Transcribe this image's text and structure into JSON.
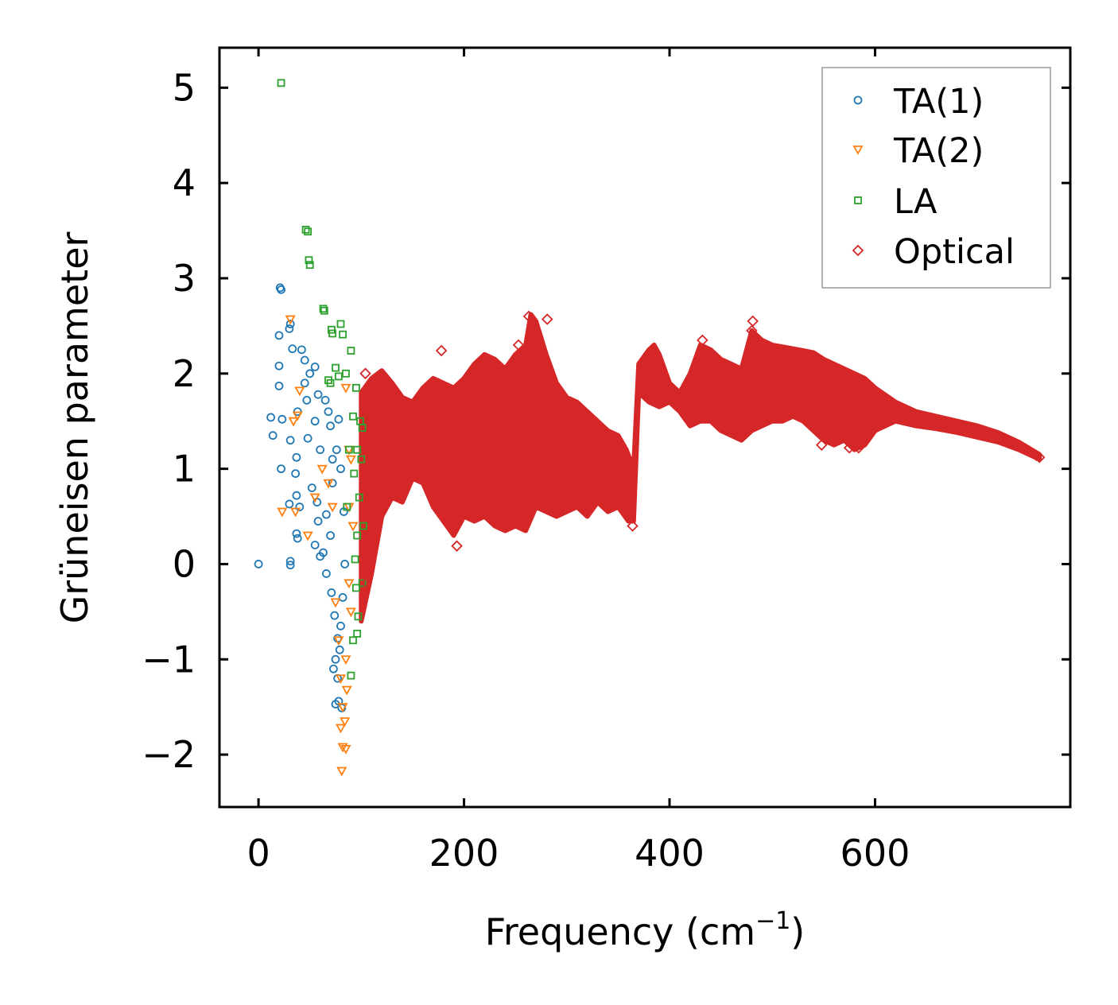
{
  "chart_data": {
    "type": "scatter",
    "xlabel_main": "Frequency (cm",
    "xlabel_sup": "−1",
    "xlabel_close": ")",
    "ylabel": "Grüneisen parameter",
    "xlim": [
      -38,
      790
    ],
    "ylim": [
      -2.55,
      5.42
    ],
    "xticks": [
      0,
      200,
      400,
      600
    ],
    "xtick_labels": [
      "0",
      "200",
      "400",
      "600"
    ],
    "yticks": [
      -2,
      -1,
      0,
      1,
      2,
      3,
      4,
      5
    ],
    "ytick_labels": [
      "−2",
      "−1",
      "0",
      "1",
      "2",
      "3",
      "4",
      "5"
    ],
    "legend_position": "top-right",
    "series": [
      {
        "name": "TA(1)",
        "marker": "circle",
        "color": "#1f77b4",
        "points": [
          [
            0,
            0
          ],
          [
            21,
            2.9
          ],
          [
            22,
            2.88
          ],
          [
            20,
            2.4
          ],
          [
            31,
            2.52
          ],
          [
            30,
            2.47
          ],
          [
            20,
            2.08
          ],
          [
            33,
            2.26
          ],
          [
            20,
            1.87
          ],
          [
            12,
            1.54
          ],
          [
            14,
            1.35
          ],
          [
            23,
            1.52
          ],
          [
            31,
            1.3
          ],
          [
            37,
            1.12
          ],
          [
            22,
            1.0
          ],
          [
            36,
            0.95
          ],
          [
            37,
            0.72
          ],
          [
            30,
            0.63
          ],
          [
            40,
            0.6
          ],
          [
            37,
            0.32
          ],
          [
            38,
            0.27
          ],
          [
            31,
            0.03
          ],
          [
            31,
            -0.01
          ],
          [
            42,
            2.25
          ],
          [
            45,
            2.14
          ],
          [
            50,
            2.0
          ],
          [
            55,
            2.07
          ],
          [
            45,
            1.9
          ],
          [
            58,
            1.78
          ],
          [
            47,
            1.72
          ],
          [
            38,
            1.6
          ],
          [
            55,
            1.5
          ],
          [
            48,
            1.32
          ],
          [
            60,
            1.2
          ],
          [
            52,
            0.8
          ],
          [
            57,
            0.65
          ],
          [
            58,
            0.45
          ],
          [
            55,
            0.2
          ],
          [
            60,
            0.08
          ],
          [
            65,
            1.72
          ],
          [
            68,
            1.6
          ],
          [
            70,
            1.45
          ],
          [
            72,
            1.1
          ],
          [
            66,
            0.52
          ],
          [
            70,
            0.3
          ],
          [
            63,
            0.12
          ],
          [
            66,
            -0.1
          ],
          [
            71,
            -0.3
          ],
          [
            74,
            -0.54
          ],
          [
            77,
            -0.78
          ],
          [
            75,
            -1.0
          ],
          [
            73,
            -1.1
          ],
          [
            77,
            -1.2
          ],
          [
            75,
            -1.47
          ],
          [
            78,
            -1.44
          ],
          [
            81,
            -1.51
          ],
          [
            79,
            -0.9
          ],
          [
            80,
            -0.65
          ],
          [
            82,
            -0.35
          ],
          [
            84,
            0.0
          ],
          [
            83,
            0.55
          ],
          [
            80,
            1.0
          ],
          [
            78,
            1.52
          ],
          [
            76,
            1.2
          ],
          [
            72,
            0.85
          ]
        ]
      },
      {
        "name": "TA(2)",
        "marker": "triangle-down",
        "color": "#ff7f0e",
        "points": [
          [
            31,
            2.57
          ],
          [
            40,
            1.82
          ],
          [
            34,
            1.5
          ],
          [
            38,
            1.56
          ],
          [
            23,
            0.55
          ],
          [
            36,
            0.55
          ],
          [
            48,
            0.3
          ],
          [
            55,
            0.7
          ],
          [
            62,
            1.0
          ],
          [
            68,
            0.85
          ],
          [
            72,
            0.6
          ],
          [
            75,
            -0.4
          ],
          [
            78,
            -0.8
          ],
          [
            80,
            -1.2
          ],
          [
            82,
            -1.5
          ],
          [
            80,
            -1.72
          ],
          [
            82,
            -1.92
          ],
          [
            85,
            -1.94
          ],
          [
            81,
            -2.17
          ],
          [
            84,
            -1.65
          ],
          [
            86,
            -1.32
          ],
          [
            85,
            -1.0
          ],
          [
            88,
            -0.2
          ],
          [
            88,
            0.6
          ],
          [
            88,
            1.2
          ],
          [
            85,
            1.85
          ],
          [
            90,
            1.1
          ],
          [
            92,
            0.4
          ],
          [
            90,
            -0.5
          ]
        ]
      },
      {
        "name": "LA",
        "marker": "square",
        "color": "#2ca02c",
        "points": [
          [
            22,
            5.05
          ],
          [
            46,
            3.51
          ],
          [
            48,
            3.49
          ],
          [
            49,
            3.19
          ],
          [
            50,
            3.14
          ],
          [
            63,
            2.68
          ],
          [
            64,
            2.66
          ],
          [
            71,
            2.46
          ],
          [
            72,
            2.42
          ],
          [
            80,
            2.52
          ],
          [
            82,
            2.41
          ],
          [
            90,
            2.24
          ],
          [
            75,
            2.06
          ],
          [
            78,
            1.97
          ],
          [
            68,
            1.93
          ],
          [
            70,
            1.9
          ],
          [
            85,
            2.0
          ],
          [
            95,
            1.85
          ],
          [
            92,
            1.55
          ],
          [
            96,
            1.2
          ],
          [
            93,
            0.95
          ],
          [
            99,
            1.5
          ],
          [
            101,
            1.43
          ],
          [
            98,
            0.7
          ],
          [
            96,
            0.3
          ],
          [
            94,
            0.05
          ],
          [
            95,
            -0.25
          ],
          [
            97,
            -0.55
          ],
          [
            96,
            -0.73
          ],
          [
            90,
            -1.17
          ],
          [
            92,
            -0.8
          ],
          [
            101,
            -0.2
          ],
          [
            102,
            0.4
          ],
          [
            100,
            1.1
          ],
          [
            88,
            1.2
          ],
          [
            86,
            0.6
          ]
        ]
      },
      {
        "name": "Optical",
        "marker": "diamond",
        "color": "#d62728",
        "points": [
          [
            178,
            2.24
          ],
          [
            193,
            0.19
          ],
          [
            263,
            2.6
          ],
          [
            281,
            2.57
          ],
          [
            358,
            0.55
          ],
          [
            364,
            0.4
          ],
          [
            481,
            2.55
          ],
          [
            480,
            2.45
          ],
          [
            432,
            2.35
          ],
          [
            560,
            1.3
          ],
          [
            575,
            1.22
          ],
          [
            584,
            1.22
          ],
          [
            548,
            1.25
          ],
          [
            757,
            1.14
          ],
          [
            760,
            1.12
          ],
          [
            105,
            -0.2
          ],
          [
            104,
            2.0
          ],
          [
            253,
            2.3
          ],
          [
            230,
            2.1
          ]
        ],
        "band_upper": [
          [
            100,
            1.8
          ],
          [
            110,
            1.95
          ],
          [
            120,
            2.03
          ],
          [
            130,
            1.9
          ],
          [
            140,
            1.75
          ],
          [
            150,
            1.7
          ],
          [
            160,
            1.85
          ],
          [
            170,
            1.95
          ],
          [
            180,
            1.9
          ],
          [
            190,
            1.85
          ],
          [
            200,
            1.95
          ],
          [
            210,
            2.1
          ],
          [
            220,
            2.2
          ],
          [
            230,
            2.15
          ],
          [
            240,
            2.05
          ],
          [
            250,
            2.2
          ],
          [
            260,
            2.3
          ],
          [
            265,
            2.62
          ],
          [
            270,
            2.55
          ],
          [
            280,
            2.2
          ],
          [
            290,
            1.9
          ],
          [
            300,
            1.75
          ],
          [
            310,
            1.7
          ],
          [
            320,
            1.6
          ],
          [
            330,
            1.5
          ],
          [
            340,
            1.4
          ],
          [
            350,
            1.35
          ],
          [
            358,
            1.2
          ],
          [
            365,
            1.0
          ],
          [
            370,
            2.1
          ],
          [
            380,
            2.25
          ],
          [
            385,
            2.3
          ],
          [
            390,
            2.2
          ],
          [
            400,
            1.9
          ],
          [
            410,
            1.8
          ],
          [
            420,
            2.0
          ],
          [
            430,
            2.3
          ],
          [
            440,
            2.25
          ],
          [
            450,
            2.15
          ],
          [
            460,
            2.1
          ],
          [
            470,
            2.05
          ],
          [
            480,
            2.45
          ],
          [
            490,
            2.35
          ],
          [
            500,
            2.3
          ],
          [
            510,
            2.28
          ],
          [
            520,
            2.26
          ],
          [
            530,
            2.24
          ],
          [
            540,
            2.22
          ],
          [
            550,
            2.15
          ],
          [
            560,
            2.1
          ],
          [
            570,
            2.05
          ],
          [
            580,
            2.0
          ],
          [
            590,
            1.95
          ],
          [
            600,
            1.85
          ],
          [
            620,
            1.7
          ],
          [
            640,
            1.6
          ],
          [
            660,
            1.55
          ],
          [
            680,
            1.5
          ],
          [
            700,
            1.45
          ],
          [
            720,
            1.38
          ],
          [
            740,
            1.28
          ],
          [
            760,
            1.15
          ]
        ],
        "band_lower": [
          [
            100,
            -0.6
          ],
          [
            110,
            -0.1
          ],
          [
            120,
            0.5
          ],
          [
            130,
            0.7
          ],
          [
            140,
            0.65
          ],
          [
            150,
            0.9
          ],
          [
            160,
            0.85
          ],
          [
            170,
            0.6
          ],
          [
            180,
            0.45
          ],
          [
            190,
            0.3
          ],
          [
            200,
            0.5
          ],
          [
            210,
            0.45
          ],
          [
            220,
            0.5
          ],
          [
            230,
            0.4
          ],
          [
            240,
            0.35
          ],
          [
            250,
            0.4
          ],
          [
            260,
            0.35
          ],
          [
            270,
            0.6
          ],
          [
            280,
            0.55
          ],
          [
            290,
            0.5
          ],
          [
            300,
            0.55
          ],
          [
            310,
            0.6
          ],
          [
            320,
            0.5
          ],
          [
            330,
            0.65
          ],
          [
            340,
            0.55
          ],
          [
            350,
            0.6
          ],
          [
            360,
            0.45
          ],
          [
            365,
            0.45
          ],
          [
            370,
            1.8
          ],
          [
            380,
            1.7
          ],
          [
            390,
            1.65
          ],
          [
            400,
            1.7
          ],
          [
            410,
            1.6
          ],
          [
            420,
            1.45
          ],
          [
            430,
            1.5
          ],
          [
            440,
            1.5
          ],
          [
            450,
            1.4
          ],
          [
            460,
            1.35
          ],
          [
            470,
            1.3
          ],
          [
            480,
            1.4
          ],
          [
            490,
            1.45
          ],
          [
            500,
            1.5
          ],
          [
            510,
            1.5
          ],
          [
            520,
            1.55
          ],
          [
            530,
            1.5
          ],
          [
            540,
            1.4
          ],
          [
            550,
            1.3
          ],
          [
            560,
            1.25
          ],
          [
            570,
            1.3
          ],
          [
            580,
            1.2
          ],
          [
            590,
            1.25
          ],
          [
            600,
            1.4
          ],
          [
            620,
            1.5
          ],
          [
            640,
            1.45
          ],
          [
            660,
            1.42
          ],
          [
            680,
            1.38
          ],
          [
            700,
            1.33
          ],
          [
            720,
            1.28
          ],
          [
            740,
            1.2
          ],
          [
            760,
            1.1
          ]
        ]
      }
    ]
  }
}
